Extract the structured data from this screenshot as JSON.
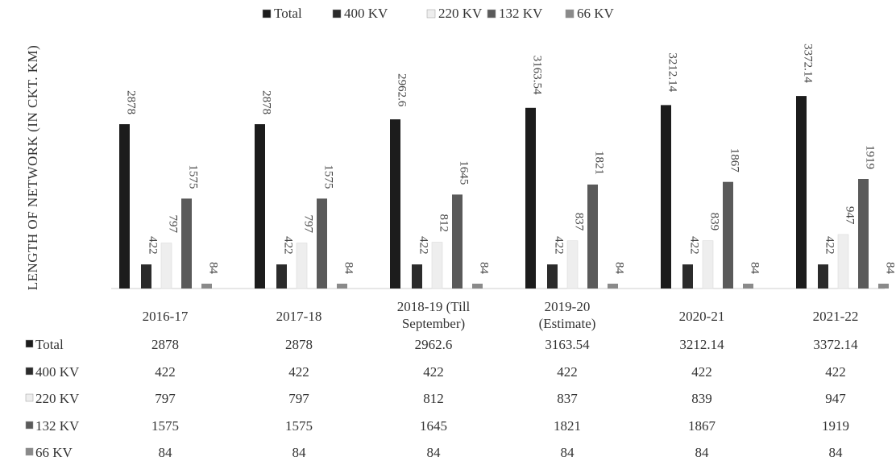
{
  "chart_data": {
    "type": "bar",
    "title": "",
    "xlabel": "",
    "ylabel": "LENGTH OF NETWORK (IN CKT. KM)",
    "ylim": [
      0,
      3500
    ],
    "grid": false,
    "legend_position": "top",
    "categories": [
      [
        "2016-17"
      ],
      [
        "2017-18"
      ],
      [
        "2018-19 (Till",
        "September)"
      ],
      [
        "2019-20",
        "(Estimate)"
      ],
      [
        "2020-21"
      ],
      [
        "2021-22"
      ]
    ],
    "series": [
      {
        "name": "Total",
        "color": "#1c1c1c",
        "labels": [
          "2878",
          "2878",
          "2962.6",
          "3163.54",
          "3212.14",
          "3372.14"
        ],
        "values": [
          2878,
          2878,
          2962.6,
          3163.54,
          3212.14,
          3372.14
        ]
      },
      {
        "name": "400 KV",
        "color": "#2b2b2b",
        "labels": [
          "422",
          "422",
          "422",
          "422",
          "422",
          "422"
        ],
        "values": [
          422,
          422,
          422,
          422,
          422,
          422
        ]
      },
      {
        "name": "220 KV",
        "color": "#eeeeee",
        "labels": [
          "797",
          "797",
          "812",
          "837",
          "839",
          "947"
        ],
        "values": [
          797,
          797,
          812,
          837,
          839,
          947
        ]
      },
      {
        "name": "132 KV",
        "color": "#5a5a5a",
        "labels": [
          "1575",
          "1575",
          "1645",
          "1821",
          "1867",
          "1919"
        ],
        "values": [
          1575,
          1575,
          1645,
          1821,
          1867,
          1919
        ]
      },
      {
        "name": "66 KV",
        "color": "#8a8a8a",
        "labels": [
          "84",
          "84",
          "84",
          "84",
          "84",
          "84"
        ],
        "values": [
          84,
          84,
          84,
          84,
          84,
          84
        ]
      }
    ]
  }
}
